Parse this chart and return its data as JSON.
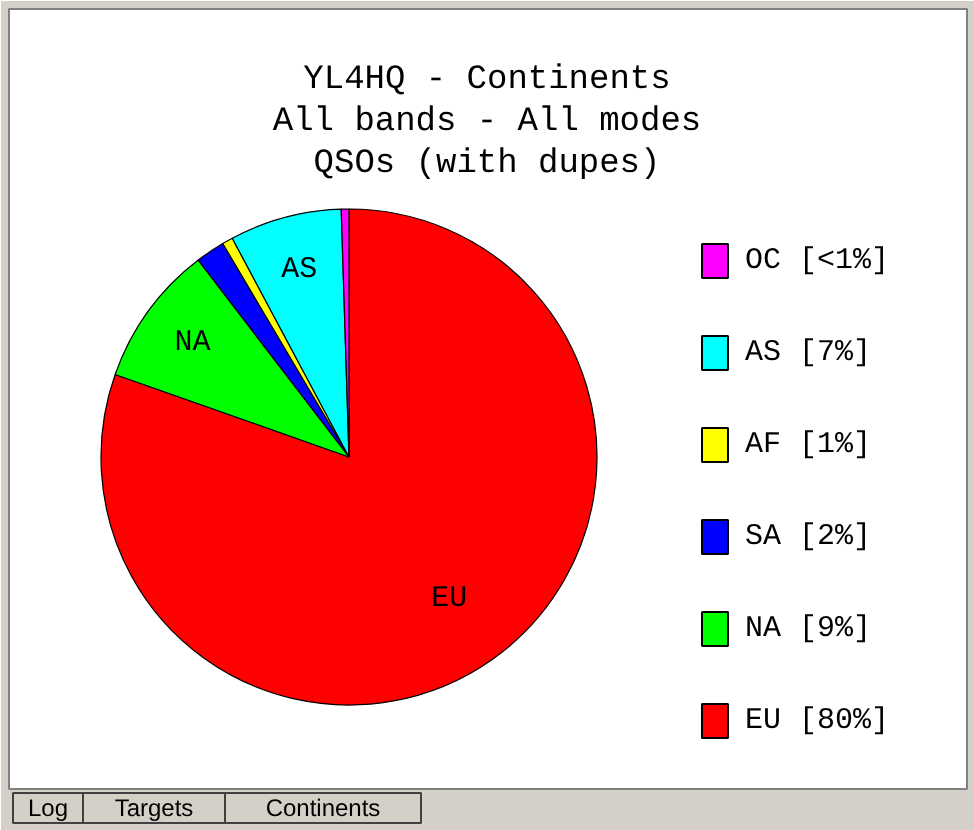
{
  "chart_data": {
    "type": "pie",
    "title": "YL4HQ - Continents",
    "subtitle": "All bands - All modes\nQSOs (with dupes)",
    "categories": [
      "OC",
      "AS",
      "AF",
      "SA",
      "NA",
      "EU"
    ],
    "values": [
      0.5,
      7.3,
      0.7,
      1.9,
      9.2,
      80.4
    ],
    "colors": [
      "#ff00ff",
      "#00ffff",
      "#ffff00",
      "#0000ff",
      "#00ff00",
      "#ff0000"
    ],
    "value_labels": [
      "[<1%]",
      "[7%]",
      "[1%]",
      "[2%]",
      "[9%]",
      "[80%]"
    ],
    "legend": "right",
    "annotations": [
      "Log",
      "Targets",
      "Continents"
    ]
  }
}
